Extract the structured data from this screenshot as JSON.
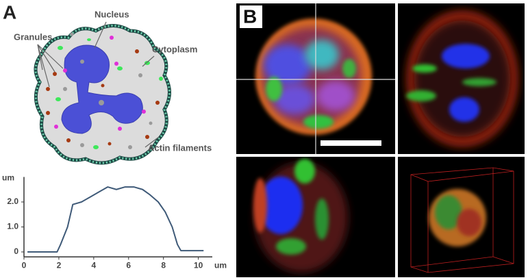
{
  "panel_labels": [
    "A",
    "B"
  ],
  "diagram": {
    "nucleus": "Nucleus",
    "granules": "Granules",
    "cytoplasm": "Cytoplasm",
    "actin": "Actin filaments"
  },
  "chart_data": {
    "type": "line",
    "x_label": "um",
    "y_label": "um",
    "x": [
      0.2,
      1.9,
      2.1,
      2.5,
      2.8,
      3.3,
      3.8,
      4.3,
      4.8,
      5.3,
      5.8,
      6.3,
      6.8,
      7.2,
      7.7,
      8.1,
      8.5,
      8.8,
      9.0,
      10.3
    ],
    "series": [
      {
        "color": "#3f5a78",
        "values": [
          0,
          0,
          0.3,
          1.0,
          1.9,
          2.0,
          2.2,
          2.4,
          2.6,
          2.5,
          2.6,
          2.6,
          2.5,
          2.3,
          2.0,
          1.6,
          1.0,
          0.3,
          0.05,
          0.05
        ]
      }
    ],
    "xlim": [
      0,
      10.8
    ],
    "ylim": [
      -0.2,
      3.0
    ],
    "xticks": [
      0,
      2,
      4,
      6,
      8,
      10
    ],
    "yticks": [
      0,
      {
        "value": 1,
        "label": "1.0"
      },
      {
        "value": 2,
        "label": "2.0"
      }
    ]
  }
}
